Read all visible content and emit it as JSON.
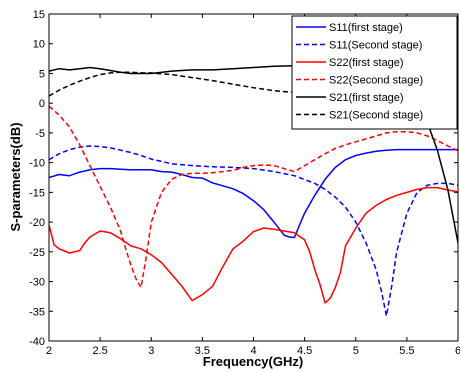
{
  "chart_data": {
    "type": "line",
    "xlabel": "Frequency(GHz)",
    "ylabel": "S-parameters(dB)",
    "xlim": [
      2,
      6
    ],
    "ylim": [
      -40,
      15
    ],
    "x_ticks": [
      2,
      2.5,
      3,
      3.5,
      4,
      4.5,
      5,
      5.5,
      6
    ],
    "x_tick_labels": [
      "2",
      "2.5",
      "3",
      "3.5",
      "4",
      "4.5",
      "5",
      "5.5",
      "6"
    ],
    "y_ticks": [
      -40,
      -35,
      -30,
      -25,
      -20,
      -15,
      -10,
      -5,
      0,
      5,
      10,
      15
    ],
    "y_tick_labels": [
      "-40",
      "-35",
      "-30",
      "-25",
      "-20",
      "-15",
      "-10",
      "-5",
      "0",
      "5",
      "10",
      "15"
    ],
    "grid": false,
    "legend_position": "top-right",
    "series": [
      {
        "name": "S11(first stage)",
        "color": "#0000ff",
        "style": "solid",
        "x": [
          2.0,
          2.1,
          2.2,
          2.3,
          2.4,
          2.5,
          2.6,
          2.7,
          2.8,
          2.9,
          3.0,
          3.1,
          3.2,
          3.3,
          3.4,
          3.5,
          3.6,
          3.7,
          3.8,
          3.9,
          4.0,
          4.1,
          4.2,
          4.3,
          4.35,
          4.4,
          4.45,
          4.5,
          4.6,
          4.7,
          4.8,
          4.9,
          5.0,
          5.1,
          5.2,
          5.3,
          5.4,
          5.5,
          5.6,
          5.7,
          5.8,
          5.9,
          6.0
        ],
        "y": [
          -12.5,
          -12.0,
          -12.2,
          -11.6,
          -11.2,
          -11.0,
          -11.0,
          -11.1,
          -11.2,
          -11.2,
          -11.2,
          -11.5,
          -11.6,
          -12.0,
          -12.5,
          -12.6,
          -13.4,
          -13.9,
          -14.4,
          -15.2,
          -16.4,
          -17.9,
          -20.0,
          -22.2,
          -22.5,
          -22.6,
          -20.5,
          -18.5,
          -15.5,
          -12.8,
          -10.8,
          -9.5,
          -8.8,
          -8.4,
          -8.1,
          -7.9,
          -7.8,
          -7.8,
          -7.8,
          -7.8,
          -7.8,
          -7.8,
          -7.8
        ]
      },
      {
        "name": "S11(Second stage)",
        "color": "#0000ff",
        "style": "dashed",
        "x": [
          2.0,
          2.1,
          2.2,
          2.3,
          2.4,
          2.5,
          2.6,
          2.7,
          2.8,
          2.9,
          3.0,
          3.2,
          3.4,
          3.6,
          3.8,
          4.0,
          4.2,
          4.4,
          4.6,
          4.7,
          4.8,
          4.9,
          5.0,
          5.1,
          5.2,
          5.25,
          5.3,
          5.35,
          5.4,
          5.5,
          5.6,
          5.7,
          5.8,
          5.9,
          6.0
        ],
        "y": [
          -9.5,
          -8.5,
          -7.8,
          -7.4,
          -7.2,
          -7.3,
          -7.5,
          -7.9,
          -8.3,
          -8.8,
          -9.4,
          -10.2,
          -10.5,
          -10.7,
          -10.8,
          -11.0,
          -11.5,
          -12.2,
          -13.5,
          -14.5,
          -15.8,
          -17.5,
          -20.0,
          -23.5,
          -28.0,
          -31.5,
          -35.8,
          -31.0,
          -25.0,
          -18.5,
          -15.0,
          -13.8,
          -13.5,
          -13.5,
          -13.8
        ]
      },
      {
        "name": "S22(first stage)",
        "color": "#ff0000",
        "style": "solid",
        "x": [
          2.0,
          2.05,
          2.1,
          2.2,
          2.3,
          2.35,
          2.4,
          2.5,
          2.6,
          2.7,
          2.8,
          2.9,
          3.0,
          3.1,
          3.2,
          3.3,
          3.4,
          3.5,
          3.6,
          3.7,
          3.8,
          3.9,
          4.0,
          4.1,
          4.2,
          4.3,
          4.4,
          4.5,
          4.55,
          4.6,
          4.65,
          4.7,
          4.75,
          4.8,
          4.85,
          4.9,
          5.0,
          5.1,
          5.2,
          5.3,
          5.4,
          5.5,
          5.6,
          5.7,
          5.8,
          5.9,
          6.0
        ],
        "y": [
          -20.5,
          -23.8,
          -24.5,
          -25.2,
          -24.8,
          -23.5,
          -22.5,
          -21.5,
          -21.8,
          -22.8,
          -24.0,
          -24.5,
          -25.5,
          -26.8,
          -28.8,
          -30.8,
          -33.2,
          -32.2,
          -30.8,
          -27.5,
          -24.5,
          -23.2,
          -21.6,
          -21.0,
          -21.2,
          -21.5,
          -21.8,
          -23.0,
          -25.0,
          -28.0,
          -30.5,
          -33.6,
          -32.8,
          -31.0,
          -28.5,
          -24.0,
          -21.0,
          -18.5,
          -17.2,
          -16.2,
          -15.5,
          -15.0,
          -14.5,
          -14.2,
          -14.2,
          -14.6,
          -14.9
        ]
      },
      {
        "name": "S22(Second stage)",
        "color": "#ff0000",
        "style": "dashed",
        "x": [
          2.0,
          2.1,
          2.2,
          2.3,
          2.4,
          2.5,
          2.6,
          2.7,
          2.75,
          2.8,
          2.85,
          2.9,
          2.95,
          3.0,
          3.1,
          3.2,
          3.3,
          3.4,
          3.5,
          3.6,
          3.7,
          3.8,
          3.9,
          4.0,
          4.1,
          4.2,
          4.3,
          4.4,
          4.5,
          4.6,
          4.7,
          4.8,
          4.9,
          5.0,
          5.1,
          5.2,
          5.3,
          5.4,
          5.5,
          5.6,
          5.7,
          5.8,
          5.9,
          6.0
        ],
        "y": [
          -0.5,
          -2.0,
          -4.0,
          -7.0,
          -10.5,
          -14.0,
          -17.5,
          -21.5,
          -24.5,
          -27.2,
          -29.5,
          -31.0,
          -26.0,
          -20.0,
          -15.0,
          -12.8,
          -12.0,
          -11.8,
          -11.8,
          -11.7,
          -11.5,
          -11.3,
          -10.8,
          -10.5,
          -10.4,
          -10.5,
          -11.0,
          -11.5,
          -10.5,
          -9.5,
          -8.5,
          -7.6,
          -7.0,
          -6.5,
          -6.0,
          -5.5,
          -5.0,
          -4.8,
          -4.8,
          -5.0,
          -5.5,
          -6.3,
          -7.2,
          -8.0
        ]
      },
      {
        "name": "S21(first stage)",
        "color": "#000000",
        "style": "solid",
        "x": [
          2.0,
          2.1,
          2.2,
          2.3,
          2.4,
          2.5,
          2.6,
          2.7,
          2.8,
          2.9,
          3.0,
          3.2,
          3.4,
          3.6,
          3.8,
          4.0,
          4.2,
          4.4,
          4.6,
          4.8,
          5.0,
          5.1,
          5.2,
          5.3,
          5.4,
          5.5,
          5.6,
          5.7,
          5.8,
          5.9,
          6.0
        ],
        "y": [
          5.4,
          5.8,
          5.6,
          5.8,
          6.0,
          5.8,
          5.5,
          5.2,
          5.0,
          5.0,
          5.0,
          5.4,
          5.6,
          5.6,
          5.8,
          6.0,
          6.2,
          6.3,
          6.3,
          6.5,
          6.5,
          6.5,
          6.3,
          6.0,
          5.0,
          3.3,
          0.5,
          -3.2,
          -8.0,
          -14.5,
          -23.5
        ]
      },
      {
        "name": "S21(Second stage)",
        "color": "#000000",
        "style": "dashed",
        "x": [
          2.0,
          2.1,
          2.2,
          2.3,
          2.4,
          2.5,
          2.6,
          2.7,
          2.8,
          2.9,
          3.0,
          3.2,
          3.4,
          3.6,
          3.8,
          4.0,
          4.2,
          4.4,
          4.6,
          4.8,
          5.0,
          5.2,
          5.4,
          5.6,
          5.8,
          6.0
        ],
        "y": [
          1.2,
          2.2,
          3.0,
          3.7,
          4.3,
          4.8,
          5.1,
          5.2,
          5.2,
          5.1,
          5.1,
          4.8,
          4.3,
          3.8,
          3.2,
          2.6,
          2.1,
          1.8,
          1.6,
          1.6,
          1.7,
          1.8,
          1.8,
          1.7,
          1.6,
          1.7
        ]
      }
    ]
  }
}
